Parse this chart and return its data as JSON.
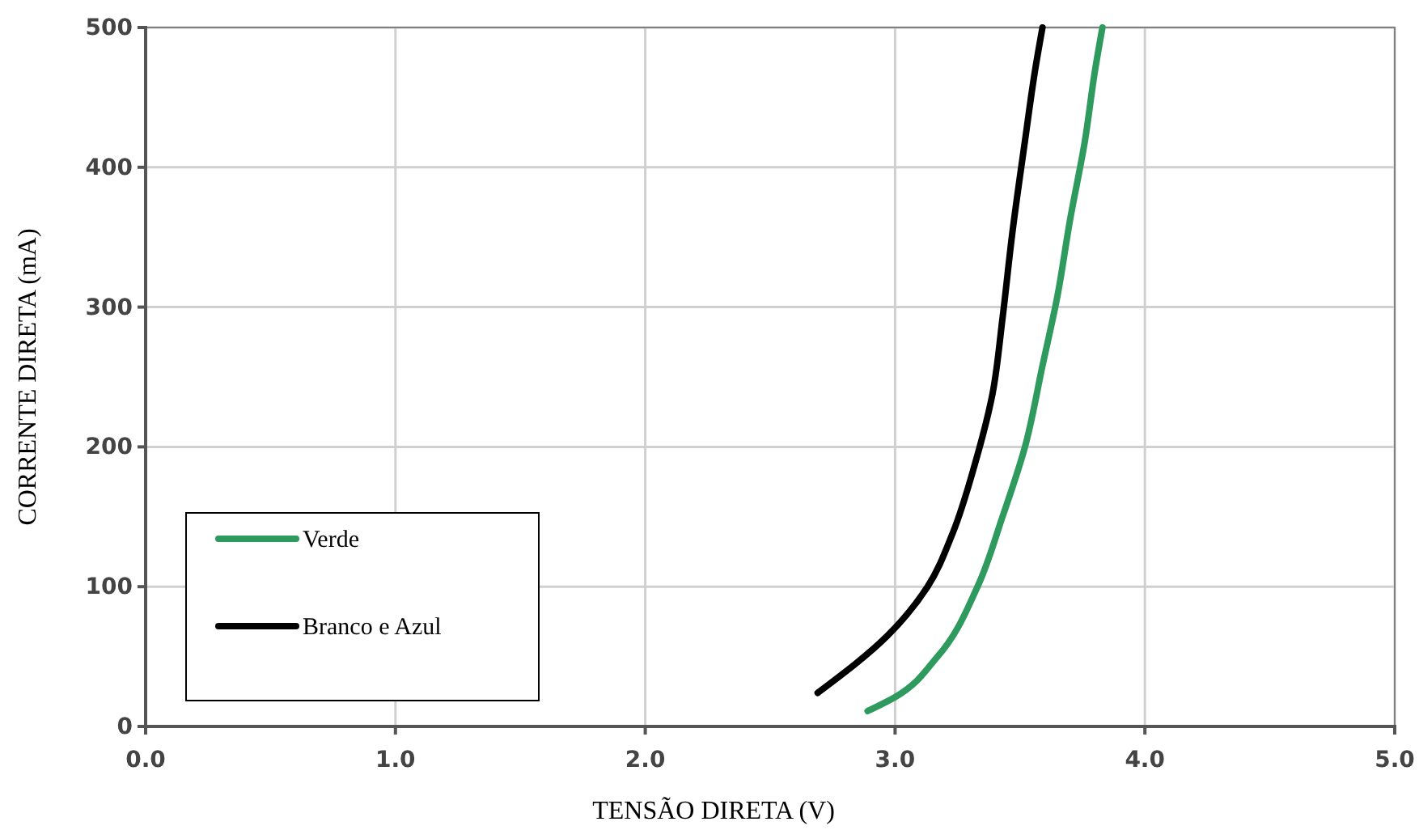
{
  "chart_data": {
    "type": "line",
    "xlabel": "TENSÃO DIRETA (V)",
    "ylabel": "CORRENTE DIRETA (mA)",
    "xlim": [
      0,
      5
    ],
    "xticks": [
      {
        "value": 0,
        "label": "0.0"
      },
      {
        "value": 1,
        "label": "1.0"
      },
      {
        "value": 2,
        "label": "2.0"
      },
      {
        "value": 3,
        "label": "3.0"
      },
      {
        "value": 4,
        "label": "4.0"
      },
      {
        "value": 5,
        "label": "5.0"
      }
    ],
    "ylim": [
      0,
      500
    ],
    "yticks": [
      0,
      100,
      200,
      300,
      400,
      500
    ],
    "grid": true,
    "legend": "bottom left",
    "marker": "none",
    "line_style": "solid",
    "series": [
      {
        "name": "Verde",
        "color": "#2e9a5e",
        "x": [
          2.89,
          3.0,
          3.17,
          3.33,
          3.43,
          3.52,
          3.59,
          3.65,
          3.7,
          3.76,
          3.8,
          3.83
        ],
        "values": [
          11,
          21,
          50,
          100,
          150,
          200,
          258,
          308,
          362,
          419,
          469,
          500
        ]
      },
      {
        "name": "Branco e Azul",
        "color": "#000000",
        "x": [
          2.69,
          2.97,
          3.13,
          3.23,
          3.32,
          3.39,
          3.43,
          3.47,
          3.52,
          3.56,
          3.59
        ],
        "values": [
          24,
          65,
          100,
          138,
          188,
          238,
          292,
          354,
          419,
          469,
          500
        ]
      }
    ]
  }
}
